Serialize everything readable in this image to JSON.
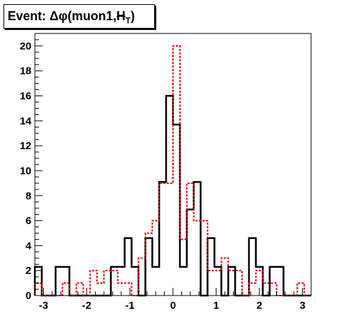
{
  "chart_data": {
    "type": "histogram",
    "title": "Event: Δφ(muon1,H̸T)",
    "title_parts": {
      "prefix": "Event: ",
      "delta_phi": "Δφ",
      "args": "(muon1,",
      "h": "H",
      "t": "T",
      "close": ")"
    },
    "xlabel": "",
    "ylabel": "",
    "xlim": [
      -3.2,
      3.2
    ],
    "ylim": [
      0,
      21
    ],
    "x_ticks": [
      -3,
      -2,
      -1,
      0,
      1,
      2,
      3
    ],
    "y_ticks": [
      0,
      2,
      4,
      6,
      8,
      10,
      12,
      14,
      16,
      18,
      20
    ],
    "bin_edges": [
      -3.2,
      -3.04,
      -2.88,
      -2.72,
      -2.56,
      -2.4,
      -2.24,
      -2.08,
      -1.92,
      -1.76,
      -1.6,
      -1.44,
      -1.28,
      -1.12,
      -0.96,
      -0.8,
      -0.64,
      -0.48,
      -0.32,
      -0.16,
      0.0,
      0.16,
      0.32,
      0.48,
      0.64,
      0.8,
      0.96,
      1.12,
      1.28,
      1.44,
      1.6,
      1.76,
      1.92,
      2.08,
      2.24,
      2.4,
      2.56,
      2.72,
      2.88,
      3.04,
      3.2
    ],
    "series": [
      {
        "color": "#000000",
        "style": "solid",
        "values": [
          2.3,
          0,
          0,
          2.3,
          2.3,
          0,
          0,
          0,
          0,
          0,
          0,
          2.3,
          2.3,
          4.6,
          2.3,
          0,
          4.6,
          2.3,
          9.1,
          16.0,
          13.7,
          2.3,
          6.9,
          9.1,
          0,
          4.6,
          2.3,
          0,
          2.3,
          0,
          0,
          4.6,
          2.3,
          0,
          2.3,
          2.3,
          0,
          0,
          0,
          0
        ]
      },
      {
        "color": "#e00000",
        "style": "dashed",
        "values": [
          1.0,
          0,
          0,
          0,
          1.0,
          0,
          1.0,
          0,
          2.0,
          1.0,
          2.0,
          2.0,
          1.0,
          1.0,
          0,
          3.0,
          5.0,
          6.0,
          9.0,
          9.0,
          20.0,
          4.5,
          9.0,
          6.0,
          6.0,
          2.0,
          2.0,
          3.0,
          2.0,
          2.0,
          0,
          1.0,
          2.0,
          1.0,
          1.0,
          0,
          0,
          0,
          1.0,
          0
        ]
      }
    ]
  }
}
